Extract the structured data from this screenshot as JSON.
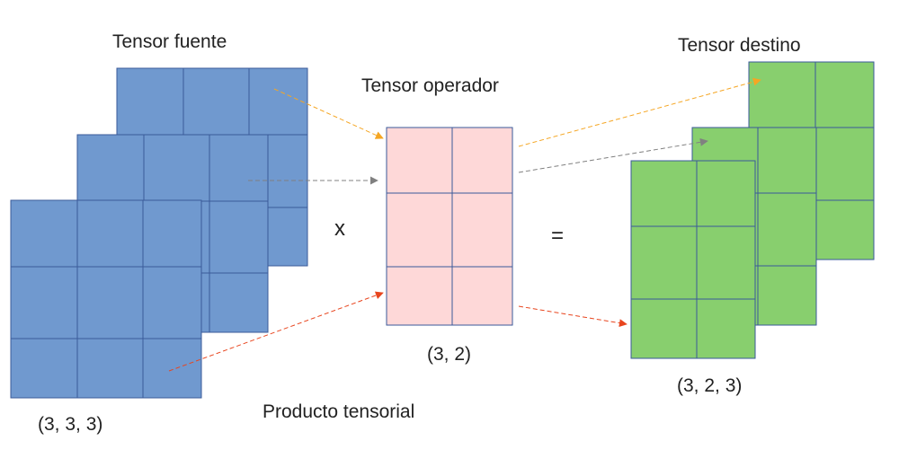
{
  "labels": {
    "source_title": "Tensor fuente",
    "operator_title": "Tensor operador",
    "target_title": "Tensor destino",
    "multiply_sign": "x",
    "equals_sign": "=",
    "source_shape": "(3, 3, 3)",
    "operator_shape": "(3, 2)",
    "target_shape": "(3, 2, 3)",
    "operation_caption": "Producto tensorial"
  },
  "colors": {
    "source_fill": "#7099CF",
    "source_stroke": "#3A5A9A",
    "operator_fill": "#FED8D8",
    "operator_stroke": "#3A5A9A",
    "target_fill": "#88CF6E",
    "target_stroke": "#3A5A9A",
    "arrow_orange": "#F5A623",
    "arrow_gray": "#808080",
    "arrow_red": "#E8451E"
  }
}
